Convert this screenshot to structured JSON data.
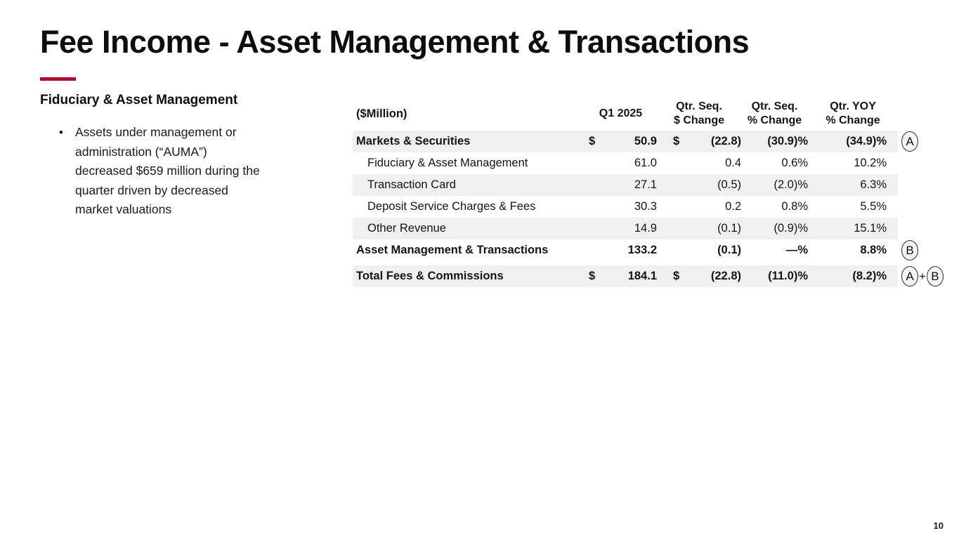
{
  "slide": {
    "title": "Fee Income - Asset Management & Transactions",
    "page_number": "10",
    "accent_color": "#AD0C33"
  },
  "left_panel": {
    "heading": "Fiduciary & Asset Management",
    "bullet_marker": "•",
    "bullets": [
      "Assets under management or\nadministration (“AUMA”)\ndecreased $659 million during the\nquarter driven by decreased\nmarket valuations"
    ]
  },
  "table": {
    "unit_label": "($Million)",
    "headers": [
      {
        "line1": "Q1 2025",
        "line2": ""
      },
      {
        "line1": "Qtr. Seq.",
        "line2": "$ Change"
      },
      {
        "line1": "Qtr. Seq.",
        "line2": "% Change"
      },
      {
        "line1": "Qtr. YOY",
        "line2": "% Change"
      }
    ],
    "badge_plus": "+",
    "rows": [
      {
        "label": "Markets & Securities",
        "dollar1": "$",
        "q1": "50.9",
        "dollar2": "$",
        "seq_dollar": "(22.8)",
        "seq_pct": "(30.9)%",
        "yoy_pct": "(34.9)%",
        "badge": "A"
      },
      {
        "label": "Fiduciary & Asset Management",
        "q1": "61.0",
        "seq_dollar": "0.4",
        "seq_pct": "0.6%",
        "yoy_pct": "10.2%"
      },
      {
        "label": "Transaction Card",
        "q1": "27.1",
        "seq_dollar": "(0.5)",
        "seq_pct": "(2.0)%",
        "yoy_pct": "6.3%"
      },
      {
        "label": "Deposit Service Charges & Fees",
        "q1": "30.3",
        "seq_dollar": "0.2",
        "seq_pct": "0.8%",
        "yoy_pct": "5.5%"
      },
      {
        "label": "Other Revenue",
        "q1": "14.9",
        "seq_dollar": "(0.1)",
        "seq_pct": "(0.9)%",
        "yoy_pct": "15.1%"
      },
      {
        "label": "Asset Management & Transactions",
        "q1": "133.2",
        "seq_dollar": "(0.1)",
        "seq_pct": "—%",
        "yoy_pct": "8.8%",
        "badge": "B"
      },
      {
        "label": "Total Fees & Commissions",
        "dollar1": "$",
        "q1": "184.1",
        "dollar2": "$",
        "seq_dollar": "(22.8)",
        "seq_pct": "(11.0)%",
        "yoy_pct": "(8.2)%",
        "badge_a": "A",
        "badge_b": "B"
      }
    ]
  }
}
